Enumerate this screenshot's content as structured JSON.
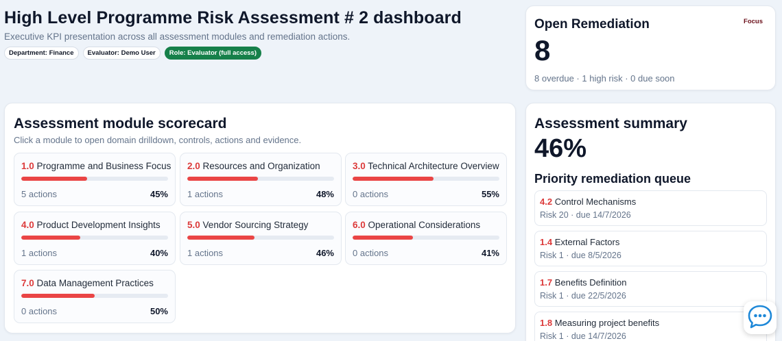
{
  "header": {
    "title": "High Level Programme Risk Assessment # 2 dashboard",
    "subtitle": "Executive KPI presentation across all assessment modules and remediation actions.",
    "tags": [
      {
        "label": "Department: Finance"
      },
      {
        "label": "Evaluator: Demo User"
      },
      {
        "label": "Role: Evaluator (full access)"
      }
    ]
  },
  "open_remediation": {
    "label": "Open Remediation",
    "focus": "Focus",
    "value": "8",
    "meta": "8 overdue · 1 high risk · 0 due soon"
  },
  "scorecard": {
    "title": "Assessment module scorecard",
    "hint": "Click a module to open domain drilldown, controls, actions and evidence.",
    "modules": [
      {
        "num": "1.0",
        "name": "Programme and Business Focus",
        "actions": "5 actions",
        "pct": "45%",
        "progress": 0.45
      },
      {
        "num": "2.0",
        "name": "Resources and Organization",
        "actions": "1 actions",
        "pct": "48%",
        "progress": 0.48
      },
      {
        "num": "3.0",
        "name": "Technical Architecture Overview",
        "actions": "0 actions",
        "pct": "55%",
        "progress": 0.55
      },
      {
        "num": "4.0",
        "name": "Product Development Insights",
        "actions": "1 actions",
        "pct": "40%",
        "progress": 0.4
      },
      {
        "num": "5.0",
        "name": "Vendor Sourcing Strategy",
        "actions": "1 actions",
        "pct": "46%",
        "progress": 0.46
      },
      {
        "num": "6.0",
        "name": "Operational Considerations",
        "actions": "0 actions",
        "pct": "41%",
        "progress": 0.41
      },
      {
        "num": "7.0",
        "name": "Data Management Practices",
        "actions": "0 actions",
        "pct": "50%",
        "progress": 0.5
      }
    ]
  },
  "summary": {
    "title": "Assessment summary",
    "value": "46%",
    "queue_title": "Priority remediation queue",
    "queue": [
      {
        "num": "4.2",
        "name": "Control Mechanisms",
        "meta": "Risk 20 · due 14/7/2026"
      },
      {
        "num": "1.4",
        "name": "External Factors",
        "meta": "Risk 1 · due 8/5/2026"
      },
      {
        "num": "1.7",
        "name": "Benefits Definition",
        "meta": "Risk 1 · due 22/5/2026"
      },
      {
        "num": "1.8",
        "name": "Measuring project benefits",
        "meta": "Risk 1 · due 14/7/2026"
      }
    ]
  },
  "colors": {
    "accent_red": "#ea4545",
    "role_green": "#16804a",
    "chat_blue": "#1e88d8"
  },
  "chat": {
    "icon": "chat-bubble-icon"
  }
}
